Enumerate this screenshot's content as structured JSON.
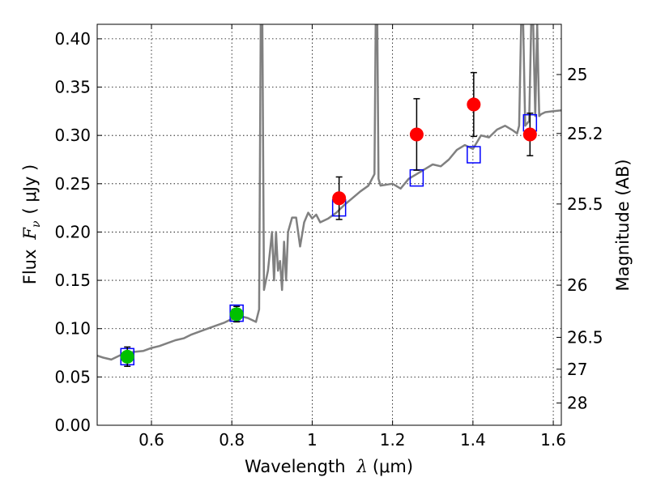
{
  "chart_data": {
    "type": "scatter",
    "xlabel_prefix": "Wavelength",
    "xlabel_symbol": "λ",
    "xlabel_unit": "(μm)",
    "ylabel_prefix": "Flux",
    "ylabel_symbol": "F",
    "ylabel_sub": "ν",
    "ylabel_unit": "( μJy )",
    "y2label": "Magnitude (AB)",
    "xlim": [
      0.465,
      1.62
    ],
    "ylim": [
      0.0,
      0.415
    ],
    "x_ticks": [
      {
        "v": 0.6,
        "label": "0.6"
      },
      {
        "v": 0.8,
        "label": "0.8"
      },
      {
        "v": 1.0,
        "label": "1"
      },
      {
        "v": 1.2,
        "label": "1.2"
      },
      {
        "v": 1.4,
        "label": "1.4"
      },
      {
        "v": 1.6,
        "label": "1.6"
      }
    ],
    "y_ticks": [
      {
        "v": 0.0,
        "label": "0.00"
      },
      {
        "v": 0.05,
        "label": "0.05"
      },
      {
        "v": 0.1,
        "label": "0.10"
      },
      {
        "v": 0.15,
        "label": "0.15"
      },
      {
        "v": 0.2,
        "label": "0.20"
      },
      {
        "v": 0.25,
        "label": "0.25"
      },
      {
        "v": 0.3,
        "label": "0.30"
      },
      {
        "v": 0.35,
        "label": "0.35"
      },
      {
        "v": 0.4,
        "label": "0.40"
      }
    ],
    "magnitude_ticks": [
      {
        "label": "25",
        "flux": 0.363
      },
      {
        "label": "25.2",
        "flux": 0.302
      },
      {
        "label": "25.5",
        "flux": 0.229
      },
      {
        "label": "26",
        "flux": 0.145
      },
      {
        "label": "26.5",
        "flux": 0.091
      },
      {
        "label": "27",
        "flux": 0.058
      },
      {
        "label": "28",
        "flux": 0.023
      }
    ],
    "model_spectrum": {
      "color": "#808080",
      "x": [
        0.465,
        0.48,
        0.5,
        0.52,
        0.54,
        0.56,
        0.58,
        0.6,
        0.62,
        0.64,
        0.66,
        0.68,
        0.7,
        0.72,
        0.74,
        0.76,
        0.78,
        0.8,
        0.82,
        0.84,
        0.86,
        0.868,
        0.872,
        0.876,
        0.88,
        0.89,
        0.9,
        0.905,
        0.91,
        0.915,
        0.92,
        0.925,
        0.93,
        0.935,
        0.94,
        0.95,
        0.96,
        0.97,
        0.98,
        0.99,
        1.0,
        1.01,
        1.02,
        1.04,
        1.06,
        1.08,
        1.1,
        1.12,
        1.14,
        1.155,
        1.158,
        1.162,
        1.165,
        1.17,
        1.2,
        1.22,
        1.24,
        1.26,
        1.28,
        1.3,
        1.32,
        1.34,
        1.36,
        1.38,
        1.4,
        1.42,
        1.44,
        1.46,
        1.48,
        1.5,
        1.51,
        1.515,
        1.52,
        1.525,
        1.53,
        1.54,
        1.545,
        1.55,
        1.555,
        1.56,
        1.565,
        1.57,
        1.58,
        1.6,
        1.62
      ],
      "y": [
        0.072,
        0.07,
        0.068,
        0.072,
        0.075,
        0.076,
        0.077,
        0.08,
        0.082,
        0.085,
        0.088,
        0.09,
        0.094,
        0.097,
        0.1,
        0.103,
        0.106,
        0.11,
        0.113,
        0.111,
        0.107,
        0.12,
        0.415,
        0.415,
        0.14,
        0.16,
        0.2,
        0.15,
        0.2,
        0.16,
        0.17,
        0.14,
        0.19,
        0.15,
        0.2,
        0.215,
        0.215,
        0.185,
        0.21,
        0.22,
        0.214,
        0.218,
        0.21,
        0.214,
        0.22,
        0.228,
        0.235,
        0.242,
        0.248,
        0.26,
        0.415,
        0.415,
        0.255,
        0.248,
        0.25,
        0.245,
        0.255,
        0.26,
        0.265,
        0.27,
        0.268,
        0.275,
        0.285,
        0.29,
        0.286,
        0.3,
        0.298,
        0.306,
        0.31,
        0.305,
        0.302,
        0.31,
        0.415,
        0.415,
        0.31,
        0.315,
        0.415,
        0.415,
        0.32,
        0.415,
        0.32,
        0.322,
        0.324,
        0.325,
        0.326
      ]
    },
    "model_points": {
      "color": "#0000ff",
      "points": [
        {
          "x": 0.54,
          "y": 0.071
        },
        {
          "x": 0.812,
          "y": 0.116
        },
        {
          "x": 1.067,
          "y": 0.225
        },
        {
          "x": 1.26,
          "y": 0.256
        },
        {
          "x": 1.402,
          "y": 0.28
        },
        {
          "x": 1.542,
          "y": 0.313
        }
      ]
    },
    "observed_points": [
      {
        "x": 0.54,
        "y": 0.071,
        "err_low": 0.01,
        "err_high": 0.01,
        "color": "#00c000"
      },
      {
        "x": 0.812,
        "y": 0.115,
        "err_low": 0.008,
        "err_high": 0.008,
        "color": "#00c000"
      },
      {
        "x": 1.067,
        "y": 0.235,
        "err_low": 0.022,
        "err_high": 0.022,
        "color": "#ff0000"
      },
      {
        "x": 1.26,
        "y": 0.301,
        "err_low": 0.037,
        "err_high": 0.037,
        "color": "#ff0000"
      },
      {
        "x": 1.402,
        "y": 0.332,
        "err_low": 0.033,
        "err_high": 0.033,
        "color": "#ff0000"
      },
      {
        "x": 1.542,
        "y": 0.301,
        "err_low": 0.022,
        "err_high": 0.022,
        "color": "#ff0000"
      }
    ],
    "grid": true
  }
}
